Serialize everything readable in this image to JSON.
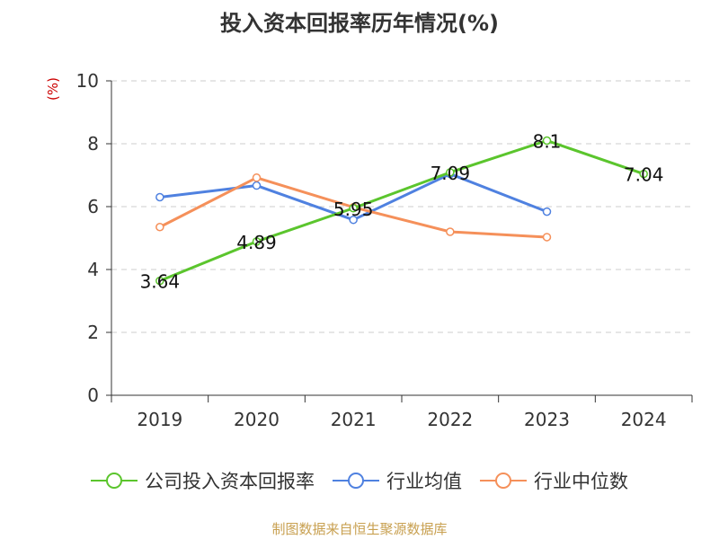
{
  "chart_data": {
    "type": "line",
    "title": "投入资本回报率历年情况(%)",
    "ylabel": "(%)",
    "xlabel": "",
    "categories": [
      "2019",
      "2020",
      "2021",
      "2022",
      "2023",
      "2024"
    ],
    "ylim": [
      0,
      10
    ],
    "yticks": [
      0,
      2,
      4,
      6,
      8,
      10
    ],
    "grid": true,
    "legend_position": "bottom",
    "series": [
      {
        "name": "公司投入资本回报率",
        "color": "#5bc52d",
        "values": [
          3.64,
          4.89,
          5.95,
          7.09,
          8.1,
          7.04
        ],
        "labels": [
          "3.64",
          "4.89",
          "5.95",
          "7.09",
          "8.1",
          "7.04"
        ]
      },
      {
        "name": "行业均值",
        "color": "#4f81e0",
        "values": [
          6.3,
          6.67,
          5.58,
          7.04,
          5.84,
          null
        ]
      },
      {
        "name": "行业中位数",
        "color": "#f5905a",
        "values": [
          5.35,
          6.92,
          5.98,
          5.2,
          5.03,
          null
        ]
      }
    ],
    "source": "制图数据来自恒生聚源数据库"
  }
}
